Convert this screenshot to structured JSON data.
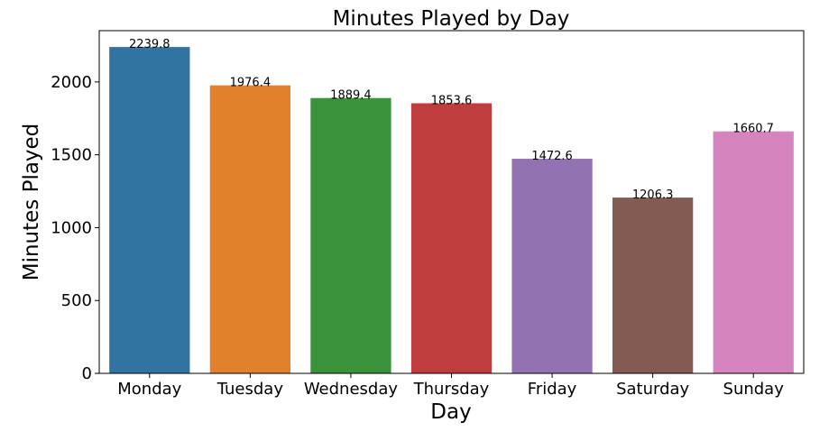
{
  "chart_data": {
    "type": "bar",
    "title": "Minutes Played by Day",
    "xlabel": "Day",
    "ylabel": "Minutes Played",
    "categories": [
      "Monday",
      "Tuesday",
      "Wednesday",
      "Thursday",
      "Friday",
      "Saturday",
      "Sunday"
    ],
    "values": [
      2239.8,
      1976.4,
      1889.4,
      1853.6,
      1472.6,
      1206.3,
      1660.7
    ],
    "data_labels": [
      "2239.8",
      "1976.4",
      "1889.4",
      "1853.6",
      "1472.6",
      "1206.3",
      "1660.7"
    ],
    "colors": [
      "#3274a1",
      "#e1812c",
      "#3a923a",
      "#c03d3e",
      "#9372b2",
      "#845b53",
      "#d684bd"
    ],
    "ylim": [
      0,
      2351.8
    ],
    "yticks": [
      0,
      500,
      1000,
      1500,
      2000
    ],
    "ytick_labels": [
      "0",
      "500",
      "1000",
      "1500",
      "2000"
    ],
    "grid": false,
    "legend": "none"
  }
}
